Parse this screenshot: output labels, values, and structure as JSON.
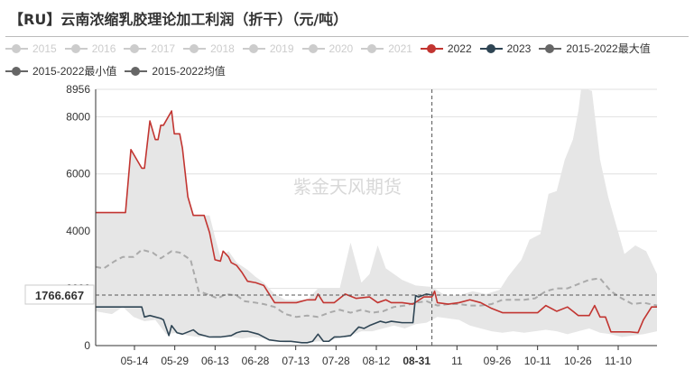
{
  "title": "【RU】云南浓缩乳胶理论加工利润（折干）（元/吨）",
  "watermark": "紫金天风期货",
  "pointer": {
    "value_label": "1766.667",
    "date_label": "08-31"
  },
  "legend": [
    {
      "name": "2015",
      "color": "#cccccc",
      "active": false
    },
    {
      "name": "2016",
      "color": "#cccccc",
      "active": false
    },
    {
      "name": "2017",
      "color": "#cccccc",
      "active": false
    },
    {
      "name": "2018",
      "color": "#cccccc",
      "active": false
    },
    {
      "name": "2019",
      "color": "#cccccc",
      "active": false
    },
    {
      "name": "2020",
      "color": "#cccccc",
      "active": false
    },
    {
      "name": "2021",
      "color": "#cccccc",
      "active": false
    },
    {
      "name": "2022",
      "color": "#c23531",
      "active": true
    },
    {
      "name": "2023",
      "color": "#2f4554",
      "active": true
    },
    {
      "name": "2015-2022最大值",
      "color": "#666666",
      "active": true
    },
    {
      "name": "2015-2022最小值",
      "color": "#666666",
      "active": true
    },
    {
      "name": "2015-2022均值",
      "color": "#666666",
      "active": true
    }
  ],
  "chart_data": {
    "type": "line",
    "title": "【RU】云南浓缩乳胶理论加工利润（折干）（元/吨）",
    "x_tick_labels": [
      "05-14",
      "05-29",
      "06-13",
      "06-28",
      "07-13",
      "07-28",
      "08-12",
      "08-31",
      "11",
      "09-26",
      "10-11",
      "10-26",
      "11-10"
    ],
    "ylim": [
      0,
      8956
    ],
    "y_ticks": [
      0,
      2000,
      4000,
      6000,
      8000,
      8956
    ],
    "x_range": [
      "04-29",
      "11-22"
    ],
    "grid": true,
    "legend_position": "top-left",
    "series": [
      {
        "name": "2022",
        "color": "#c23531",
        "x": [
          "04-29",
          "05-09",
          "05-10",
          "05-12",
          "05-16",
          "05-17",
          "05-19",
          "05-21",
          "05-22",
          "05-23",
          "05-24",
          "05-27",
          "05-28",
          "05-30",
          "05-31",
          "06-02",
          "06-04",
          "06-06",
          "06-08",
          "06-10",
          "06-12",
          "06-14",
          "06-15",
          "06-17",
          "06-18",
          "06-20",
          "06-22",
          "06-24",
          "06-27",
          "06-30",
          "07-04",
          "07-08",
          "07-12",
          "07-16",
          "07-19",
          "07-20",
          "07-22",
          "07-26",
          "07-30",
          "08-03",
          "08-08",
          "08-11",
          "08-14",
          "08-16",
          "08-20",
          "08-24",
          "08-28",
          "08-31",
          "09-01",
          "09-02",
          "09-06",
          "09-10",
          "09-14",
          "09-18",
          "09-22",
          "09-26",
          "10-01",
          "10-05",
          "10-09",
          "10-12",
          "10-16",
          "10-20",
          "10-24",
          "10-28",
          "10-30",
          "11-01",
          "11-03",
          "11-05",
          "11-08",
          "11-12",
          "11-15",
          "11-17",
          "11-20",
          "11-22"
        ],
        "y": [
          4650,
          4650,
          4650,
          6850,
          6200,
          6200,
          7850,
          7200,
          7200,
          7700,
          7700,
          8200,
          7400,
          7400,
          6900,
          5200,
          4550,
          4550,
          4550,
          3950,
          3000,
          2950,
          3300,
          3100,
          2900,
          2800,
          2550,
          2250,
          2200,
          2100,
          1500,
          1500,
          1500,
          1600,
          1600,
          1800,
          1500,
          1500,
          1800,
          1650,
          1700,
          1500,
          1600,
          1500,
          1500,
          1450,
          1700,
          1700,
          1900,
          1500,
          1450,
          1500,
          1600,
          1500,
          1300,
          1150,
          1150,
          1150,
          1150,
          1400,
          1200,
          1350,
          1050,
          1050,
          1400,
          1000,
          1000,
          480,
          480,
          480,
          450,
          900,
          1350,
          1350
        ]
      },
      {
        "name": "2023",
        "color": "#2f4554",
        "x": [
          "04-29",
          "05-16",
          "05-17",
          "05-19",
          "05-23",
          "05-24",
          "05-26",
          "05-27",
          "05-29",
          "05-31",
          "06-04",
          "06-06",
          "06-08",
          "06-10",
          "06-14",
          "06-18",
          "06-20",
          "06-22",
          "06-24",
          "06-28",
          "07-02",
          "07-06",
          "07-10",
          "07-14",
          "07-16",
          "07-18",
          "07-20",
          "07-22",
          "07-24",
          "07-26",
          "07-28",
          "08-01",
          "08-04",
          "08-06",
          "08-08",
          "08-12",
          "08-14",
          "08-16",
          "08-20",
          "08-24",
          "08-25",
          "08-26",
          "08-29",
          "08-31"
        ],
        "y": [
          1350,
          1350,
          1000,
          1050,
          950,
          900,
          350,
          700,
          450,
          400,
          550,
          400,
          350,
          300,
          300,
          350,
          450,
          500,
          500,
          400,
          200,
          150,
          150,
          100,
          100,
          150,
          400,
          150,
          150,
          300,
          300,
          350,
          650,
          600,
          700,
          850,
          800,
          850,
          800,
          800,
          1750,
          1700,
          1800,
          1766.667
        ]
      },
      {
        "name": "2015-2022均值",
        "color": "#aaaaaa",
        "dashed": true,
        "x": [
          "04-29",
          "05-02",
          "05-06",
          "05-09",
          "05-13",
          "05-16",
          "05-20",
          "05-23",
          "05-27",
          "05-30",
          "06-03",
          "06-06",
          "06-09",
          "06-13",
          "06-16",
          "06-20",
          "06-23",
          "06-27",
          "06-30",
          "07-04",
          "07-08",
          "07-12",
          "07-16",
          "07-20",
          "07-24",
          "07-28",
          "08-01",
          "08-05",
          "08-09",
          "08-13",
          "08-17",
          "08-21",
          "08-25",
          "08-29",
          "09-02",
          "09-06",
          "09-10",
          "09-14",
          "09-18",
          "09-22",
          "09-26",
          "09-30",
          "10-04",
          "10-08",
          "10-12",
          "10-16",
          "10-20",
          "10-24",
          "10-28",
          "11-01",
          "11-05",
          "11-09",
          "11-13",
          "11-17",
          "11-22"
        ],
        "y": [
          2750,
          2700,
          2950,
          3100,
          3100,
          3350,
          3250,
          3050,
          3300,
          3250,
          3000,
          1900,
          1800,
          1650,
          1800,
          1750,
          1550,
          1500,
          1450,
          1350,
          1100,
          1000,
          1050,
          1000,
          1150,
          1250,
          1150,
          1250,
          1150,
          1200,
          1350,
          1400,
          1500,
          1550,
          1400,
          1450,
          1450,
          1400,
          1400,
          1450,
          1600,
          1600,
          1600,
          1650,
          1900,
          2000,
          2000,
          2150,
          2300,
          2350,
          1900,
          1650,
          1450,
          1500,
          1400
        ]
      },
      {
        "name": "2015-2022最大值",
        "color": "#e6e6e6",
        "x": [
          "04-29",
          "05-09",
          "05-10",
          "05-12",
          "05-16",
          "05-17",
          "05-19",
          "05-21",
          "05-22",
          "05-23",
          "05-24",
          "05-27",
          "05-28",
          "05-30",
          "05-31",
          "06-02",
          "06-04",
          "06-10",
          "06-12",
          "06-14",
          "06-17",
          "06-20",
          "06-24",
          "06-27",
          "06-30",
          "07-04",
          "07-08",
          "07-12",
          "07-16",
          "07-20",
          "07-24",
          "07-28",
          "08-01",
          "08-05",
          "08-08",
          "08-11",
          "08-14",
          "08-20",
          "08-25",
          "08-31",
          "09-05",
          "09-10",
          "09-15",
          "09-20",
          "09-25",
          "09-28",
          "10-03",
          "10-06",
          "10-10",
          "10-13",
          "10-16",
          "10-19",
          "10-22",
          "10-24",
          "10-25",
          "10-27",
          "10-29",
          "11-01",
          "11-04",
          "11-07",
          "11-10",
          "11-14",
          "11-18",
          "11-22"
        ],
        "y": [
          4650,
          4650,
          4650,
          6850,
          6200,
          6200,
          7850,
          7200,
          7200,
          7700,
          7700,
          8200,
          7400,
          7400,
          6900,
          5200,
          4550,
          4550,
          3800,
          3100,
          3300,
          2900,
          2650,
          2400,
          2200,
          1800,
          1600,
          1600,
          1600,
          2000,
          2000,
          2000,
          3600,
          2200,
          2500,
          3500,
          2700,
          2300,
          2100,
          2050,
          1750,
          1750,
          1900,
          1800,
          1950,
          2400,
          3000,
          3700,
          3900,
          5300,
          5400,
          6500,
          7200,
          8200,
          8956,
          8956,
          8900,
          6500,
          5200,
          4200,
          3200,
          3500,
          3300,
          2500
        ]
      },
      {
        "name": "2015-2022最小值",
        "color": "#e6e6e6",
        "x": [
          "04-29",
          "05-05",
          "05-09",
          "05-13",
          "05-17",
          "05-21",
          "05-25",
          "05-29",
          "06-02",
          "06-06",
          "06-10",
          "06-14",
          "06-18",
          "06-22",
          "06-26",
          "06-30",
          "07-04",
          "07-08",
          "07-12",
          "07-16",
          "07-20",
          "07-24",
          "07-28",
          "08-01",
          "08-05",
          "08-09",
          "08-13",
          "08-17",
          "08-21",
          "08-25",
          "08-29",
          "09-02",
          "09-06",
          "09-10",
          "09-14",
          "09-18",
          "09-22",
          "09-26",
          "09-30",
          "10-04",
          "10-08",
          "10-12",
          "10-16",
          "10-20",
          "10-24",
          "10-28",
          "11-01",
          "11-05",
          "11-09",
          "11-13",
          "11-17",
          "11-22"
        ],
        "y": [
          1200,
          1100,
          1350,
          1000,
          850,
          900,
          400,
          450,
          350,
          300,
          350,
          300,
          300,
          250,
          300,
          250,
          150,
          100,
          100,
          100,
          150,
          150,
          300,
          350,
          500,
          500,
          600,
          700,
          600,
          750,
          800,
          1000,
          950,
          900,
          700,
          600,
          500,
          450,
          500,
          450,
          500,
          550,
          500,
          400,
          500,
          600,
          450,
          400,
          300,
          350,
          400,
          500
        ]
      }
    ]
  }
}
